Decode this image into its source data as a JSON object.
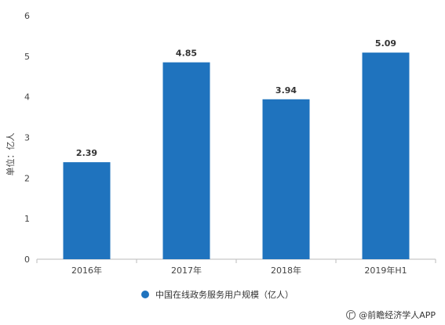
{
  "chart_data": {
    "type": "bar",
    "categories": [
      "2016年",
      "2017年",
      "2018年",
      "2019年H1"
    ],
    "values": [
      2.39,
      4.85,
      3.94,
      5.09
    ],
    "value_labels": [
      "2.39",
      "4.85",
      "3.94",
      "5.09"
    ],
    "ylabel": "单位：亿人",
    "ylim": [
      0,
      6
    ],
    "yticks": [
      "0",
      "1",
      "2",
      "3",
      "4",
      "5",
      "6"
    ],
    "legend": {
      "label": "中国在线政务服务用户规模（亿人）",
      "position": "bottom"
    },
    "grid": false,
    "bar_color": "#1f73be"
  },
  "credit": {
    "text": "@前瞻经济学人APP"
  }
}
